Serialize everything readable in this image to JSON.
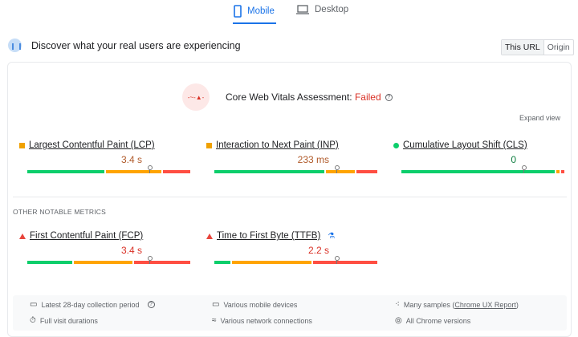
{
  "tabs": [
    {
      "label": "Mobile",
      "icon": "phone-icon",
      "active": true
    },
    {
      "label": "Desktop",
      "icon": "laptop-icon",
      "active": false
    }
  ],
  "header": {
    "title": "Discover what your real users are experiencing",
    "toggle": [
      "This URL",
      "Origin"
    ]
  },
  "assessment": {
    "label": "Core Web Vitals Assessment: ",
    "status": "Failed",
    "help": "?"
  },
  "expand_view": "Expand view",
  "core_metrics": [
    {
      "name": "Largest Contentful Paint (LCP)",
      "value": "3.4 s",
      "rating": "needs-improvement",
      "distribution": {
        "good": 48,
        "ni": 35,
        "poor": 17
      },
      "value_color": "#b05a2a"
    },
    {
      "name": "Interaction to Next Paint (INP)",
      "value": "233 ms",
      "rating": "needs-improvement",
      "distribution": {
        "good": 69,
        "ni": 18,
        "poor": 13
      },
      "value_color": "#b05a2a"
    },
    {
      "name": "Cumulative Layout Shift (CLS)",
      "value": "0",
      "rating": "good",
      "distribution": {
        "good": 96,
        "ni": 2,
        "poor": 2
      },
      "value_color": "#0d7d3f"
    }
  ],
  "other_heading": "OTHER NOTABLE METRICS",
  "other_metrics": [
    {
      "name": "First Contentful Paint (FCP)",
      "value": "3.4 s",
      "rating": "poor",
      "distribution": {
        "good": 28,
        "ni": 37,
        "poor": 35
      },
      "value_color": "#d93025"
    },
    {
      "name": "Time to First Byte (TTFB)",
      "value": "2.2 s",
      "rating": "poor",
      "distribution": {
        "good": 10,
        "ni": 50,
        "poor": 40
      },
      "value_color": "#d93025",
      "experimental": true
    }
  ],
  "footer": {
    "period": "Latest 28-day collection period",
    "durations": "Full visit durations",
    "devices": "Various mobile devices",
    "network": "Various network connections",
    "samples_prefix": "Many samples (",
    "samples_link": "Chrome UX Report",
    "samples_suffix": ")",
    "versions": "All Chrome versions"
  }
}
